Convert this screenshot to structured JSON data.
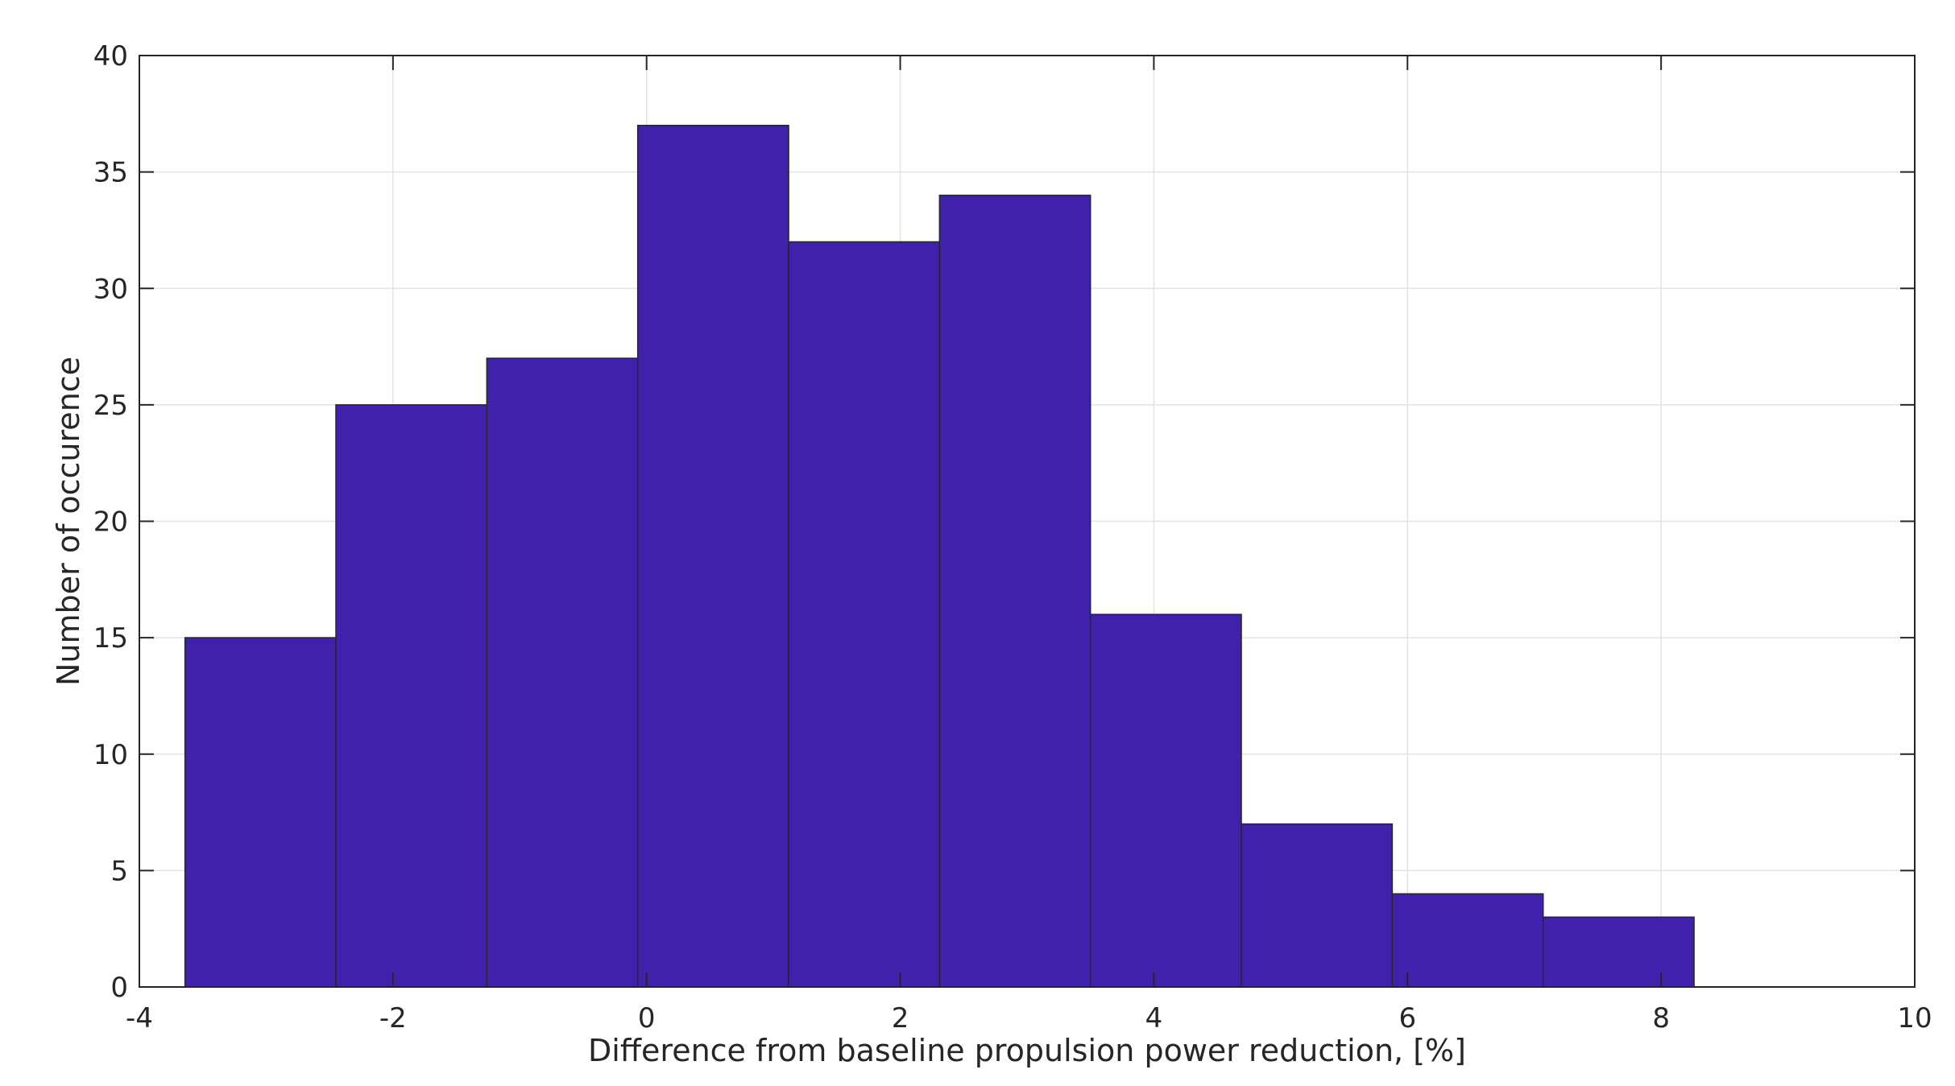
{
  "chart_data": {
    "type": "bar",
    "title": "",
    "xlabel": "Difference from baseline propulsion power reduction, [%]",
    "ylabel": "Number of occurence",
    "xlim": [
      -4,
      10
    ],
    "ylim": [
      0,
      40
    ],
    "xticks": [
      -4,
      -2,
      0,
      2,
      4,
      6,
      8,
      10
    ],
    "yticks": [
      0,
      5,
      10,
      15,
      20,
      25,
      30,
      35,
      40
    ],
    "grid": true,
    "bin_edges": [
      -3.64,
      -2.45,
      -1.26,
      -0.07,
      1.12,
      2.31,
      3.5,
      4.69,
      5.88,
      7.07,
      8.26
    ],
    "values": [
      15,
      25,
      27,
      37,
      32,
      34,
      16,
      7,
      4,
      3
    ],
    "colors": {
      "bar_fill": "#4021ab",
      "bar_edge": "#262626",
      "grid": "#e3e3e3",
      "axis": "#262626"
    }
  }
}
